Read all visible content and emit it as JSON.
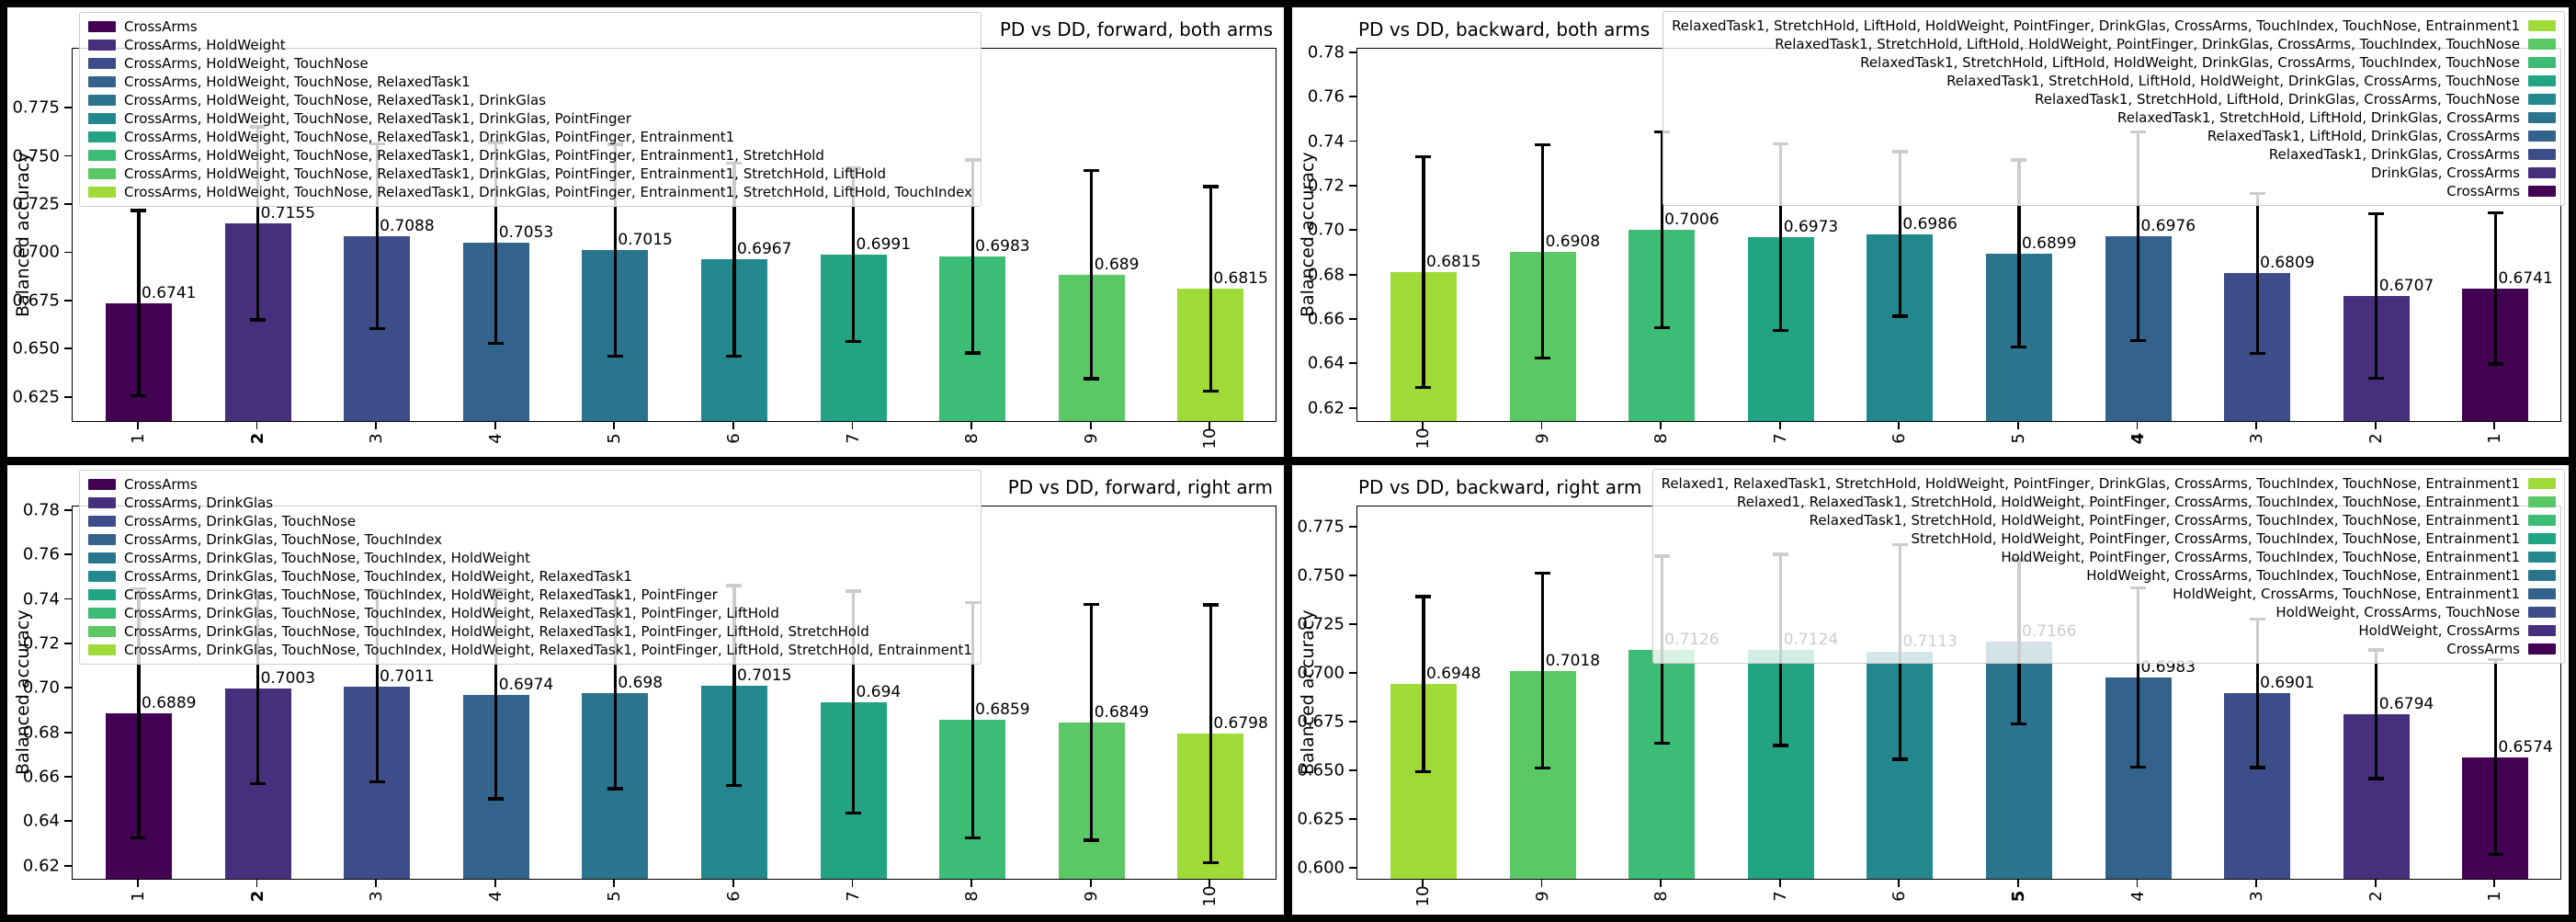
{
  "palette": [
    "#440154",
    "#46307e",
    "#3c4d8a",
    "#33638d",
    "#2b748e",
    "#23888e",
    "#22a384",
    "#3cbc75",
    "#5ac864",
    "#a0da39"
  ],
  "chart_data": [
    {
      "type": "bar",
      "title": "PD vs DD, forward, both arms",
      "title_loc": "right",
      "legend_loc": "left",
      "reversed": false,
      "ylabel": "Balanced accuracy",
      "x_tick_labels": [
        "1",
        "2",
        "3",
        "4",
        "5",
        "6",
        "7",
        "8",
        "9",
        "10"
      ],
      "bold_index": 1,
      "values": [
        0.6741,
        0.7155,
        0.7088,
        0.7053,
        0.7015,
        0.6967,
        0.6991,
        0.6983,
        0.689,
        0.6815
      ],
      "value_labels": [
        "0.6741",
        "0.7155",
        "0.7088",
        "0.7053",
        "0.7015",
        "0.6967",
        "0.6991",
        "0.6983",
        "0.689",
        "0.6815"
      ],
      "errors": [
        0.048,
        0.05,
        0.048,
        0.052,
        0.055,
        0.05,
        0.045,
        0.05,
        0.054,
        0.053
      ],
      "yticks": [
        "0.775",
        "0.750",
        "0.725",
        "0.700",
        "0.675",
        "0.650",
        "0.625"
      ],
      "ymin": 0.613,
      "ymax": 0.806,
      "grid": false,
      "legend": [
        "CrossArms",
        "CrossArms, HoldWeight",
        "CrossArms, HoldWeight, TouchNose",
        "CrossArms, HoldWeight, TouchNose, RelaxedTask1",
        "CrossArms, HoldWeight, TouchNose, RelaxedTask1, DrinkGlas",
        "CrossArms, HoldWeight, TouchNose, RelaxedTask1, DrinkGlas, PointFinger",
        "CrossArms, HoldWeight, TouchNose, RelaxedTask1, DrinkGlas, PointFinger, Entrainment1",
        "CrossArms, HoldWeight, TouchNose, RelaxedTask1, DrinkGlas, PointFinger, Entrainment1, StretchHold",
        "CrossArms, HoldWeight, TouchNose, RelaxedTask1, DrinkGlas, PointFinger, Entrainment1, StretchHold, LiftHold",
        "CrossArms, HoldWeight, TouchNose, RelaxedTask1, DrinkGlas, PointFinger, Entrainment1, StretchHold, LiftHold, TouchIndex"
      ]
    },
    {
      "type": "bar",
      "title": "PD vs DD, backward, both arms",
      "title_loc": "left",
      "legend_loc": "right",
      "reversed": true,
      "ylabel": "Balanced accuracy",
      "x_tick_labels": [
        "10",
        "9",
        "8",
        "7",
        "6",
        "5",
        "4",
        "3",
        "2",
        "1"
      ],
      "bold_index": 6,
      "values": [
        0.6815,
        0.6908,
        0.7006,
        0.6973,
        0.6986,
        0.6899,
        0.6976,
        0.6809,
        0.6707,
        0.6741
      ],
      "value_labels": [
        "0.6815",
        "0.6908",
        "0.7006",
        "0.6973",
        "0.6986",
        "0.6899",
        "0.6976",
        "0.6809",
        "0.6707",
        "0.6741"
      ],
      "errors": [
        0.052,
        0.048,
        0.044,
        0.042,
        0.037,
        0.042,
        0.047,
        0.036,
        0.037,
        0.034
      ],
      "yticks": [
        "0.78",
        "0.76",
        "0.74",
        "0.72",
        "0.70",
        "0.68",
        "0.66",
        "0.64",
        "0.62"
      ],
      "ymin": 0.6145,
      "ymax": 0.782,
      "grid": false,
      "legend": [
        "RelaxedTask1, StretchHold, LiftHold, HoldWeight, PointFinger, DrinkGlas, CrossArms, TouchIndex, TouchNose, Entrainment1",
        "RelaxedTask1, StretchHold, LiftHold, HoldWeight, PointFinger, DrinkGlas, CrossArms, TouchIndex, TouchNose",
        "RelaxedTask1, StretchHold, LiftHold, HoldWeight, DrinkGlas, CrossArms, TouchIndex, TouchNose",
        "RelaxedTask1, StretchHold, LiftHold, HoldWeight, DrinkGlas, CrossArms, TouchNose",
        "RelaxedTask1, StretchHold, LiftHold, DrinkGlas, CrossArms, TouchNose",
        "RelaxedTask1, StretchHold, LiftHold, DrinkGlas, CrossArms",
        "RelaxedTask1, LiftHold, DrinkGlas, CrossArms",
        "RelaxedTask1, DrinkGlas, CrossArms",
        "DrinkGlas, CrossArms",
        "CrossArms"
      ]
    },
    {
      "type": "bar",
      "title": "PD vs DD, forward, right arm",
      "title_loc": "right",
      "legend_loc": "left",
      "reversed": false,
      "ylabel": "Balanced accuracy",
      "x_tick_labels": [
        "1",
        "2",
        "3",
        "4",
        "5",
        "6",
        "7",
        "8",
        "9",
        "10"
      ],
      "bold_index": 1,
      "values": [
        0.6889,
        0.7003,
        0.7011,
        0.6974,
        0.698,
        0.7015,
        0.694,
        0.6859,
        0.6849,
        0.6798
      ],
      "value_labels": [
        "0.6889",
        "0.7003",
        "0.7011",
        "0.6974",
        "0.698",
        "0.7015",
        "0.694",
        "0.6859",
        "0.6849",
        "0.6798"
      ],
      "errors": [
        0.056,
        0.043,
        0.043,
        0.047,
        0.043,
        0.045,
        0.05,
        0.053,
        0.053,
        0.058
      ],
      "yticks": [
        "0.78",
        "0.76",
        "0.74",
        "0.72",
        "0.70",
        "0.68",
        "0.66",
        "0.64",
        "0.62"
      ],
      "ymin": 0.6145,
      "ymax": 0.782,
      "grid": false,
      "legend": [
        "CrossArms",
        "CrossArms, DrinkGlas",
        "CrossArms, DrinkGlas, TouchNose",
        "CrossArms, DrinkGlas, TouchNose, TouchIndex",
        "CrossArms, DrinkGlas, TouchNose, TouchIndex, HoldWeight",
        "CrossArms, DrinkGlas, TouchNose, TouchIndex, HoldWeight, RelaxedTask1",
        "CrossArms, DrinkGlas, TouchNose, TouchIndex, HoldWeight, RelaxedTask1, PointFinger",
        "CrossArms, DrinkGlas, TouchNose, TouchIndex, HoldWeight, RelaxedTask1, PointFinger, LiftHold",
        "CrossArms, DrinkGlas, TouchNose, TouchIndex, HoldWeight, RelaxedTask1, PointFinger, LiftHold, StretchHold",
        "CrossArms, DrinkGlas, TouchNose, TouchIndex, HoldWeight, RelaxedTask1, PointFinger, LiftHold, StretchHold, Entrainment1"
      ]
    },
    {
      "type": "bar",
      "title": "PD vs DD, backward, right arm",
      "title_loc": "left",
      "legend_loc": "right",
      "reversed": true,
      "ylabel": "Balanced accuracy",
      "x_tick_labels": [
        "10",
        "9",
        "8",
        "7",
        "6",
        "5",
        "4",
        "3",
        "2",
        "1"
      ],
      "bold_index": 5,
      "values": [
        0.6948,
        0.7018,
        0.7126,
        0.7124,
        0.7113,
        0.7166,
        0.6983,
        0.6901,
        0.6794,
        0.6574
      ],
      "value_labels": [
        "0.6948",
        "0.7018",
        "0.7126",
        "0.7124",
        "0.7113",
        "0.7166",
        "0.6983",
        "0.6901",
        "0.6794",
        "0.6574"
      ],
      "errors": [
        0.045,
        0.05,
        0.048,
        0.049,
        0.055,
        0.042,
        0.046,
        0.038,
        0.033,
        0.05
      ],
      "yticks": [
        "0.775",
        "0.750",
        "0.725",
        "0.700",
        "0.675",
        "0.650",
        "0.625",
        "0.600"
      ],
      "ymin": 0.595,
      "ymax": 0.786,
      "grid": false,
      "legend": [
        "Relaxed1, RelaxedTask1, StretchHold, HoldWeight, PointFinger, DrinkGlas, CrossArms, TouchIndex, TouchNose, Entrainment1",
        "Relaxed1, RelaxedTask1, StretchHold, HoldWeight, PointFinger, CrossArms, TouchIndex, TouchNose, Entrainment1",
        "RelaxedTask1, StretchHold, HoldWeight, PointFinger, CrossArms, TouchIndex, TouchNose, Entrainment1",
        "StretchHold, HoldWeight, PointFinger, CrossArms, TouchIndex, TouchNose, Entrainment1",
        "HoldWeight, PointFinger, CrossArms, TouchIndex, TouchNose, Entrainment1",
        "HoldWeight, CrossArms, TouchIndex, TouchNose, Entrainment1",
        "HoldWeight, CrossArms, TouchNose, Entrainment1",
        "HoldWeight, CrossArms, TouchNose",
        "HoldWeight, CrossArms",
        "CrossArms"
      ]
    }
  ]
}
